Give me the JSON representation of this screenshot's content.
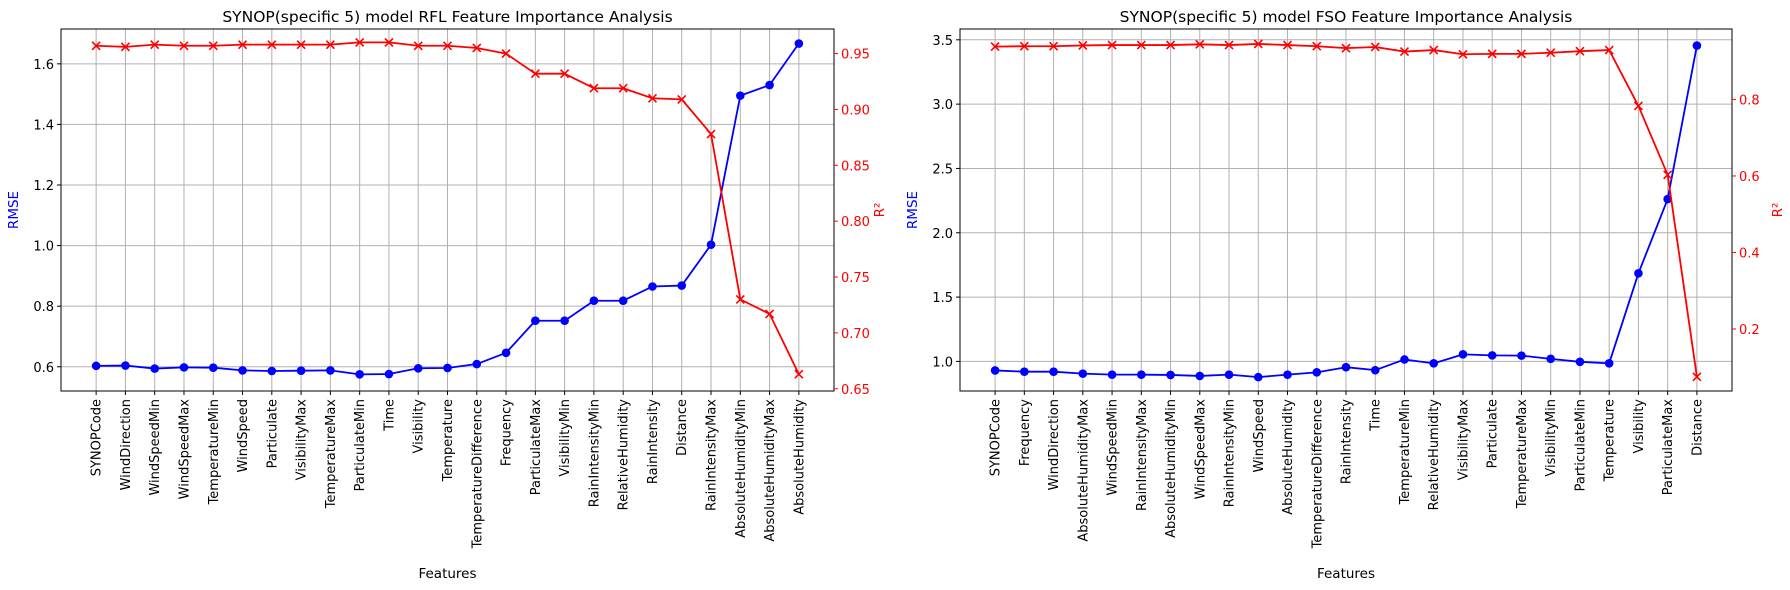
{
  "colors": {
    "rmse": "#0000ff",
    "r2": "#ff0000",
    "grid": "#b0b0b0",
    "axis": "#000000"
  },
  "chart_data": [
    {
      "type": "line",
      "title": "SYNOP(specific 5) model RFL Feature Importance Analysis",
      "xlabel": "Features",
      "ylabel": "RMSE",
      "y2label": "R²",
      "grid": true,
      "categories": [
        "SYNOPCode",
        "WindDirection",
        "WindSpeedMin",
        "WindSpeedMax",
        "TemperatureMin",
        "WindSpeed",
        "Particulate",
        "VisibilityMax",
        "TemperatureMax",
        "ParticulateMin",
        "Time",
        "Visibility",
        "Temperature",
        "TemperatureDifference",
        "Frequency",
        "ParticulateMax",
        "VisibilityMin",
        "RainIntensityMin",
        "RelativeHumidity",
        "RainIntensity",
        "Distance",
        "RainIntensityMax",
        "AbsoluteHumidityMin",
        "AbsoluteHumidityMax",
        "AbsoluteHumidity"
      ],
      "ylim": [
        0.52,
        1.715
      ],
      "y2lim": [
        0.648,
        0.972
      ],
      "yticks": [
        "0.6",
        "0.8",
        "1.0",
        "1.2",
        "1.4",
        "1.6"
      ],
      "y2ticks": [
        "0.65",
        "0.70",
        "0.75",
        "0.80",
        "0.85",
        "0.90",
        "0.95"
      ],
      "series": [
        {
          "name": "RMSE",
          "axis": "left",
          "marker": "circle",
          "color": "#0000ff",
          "values": [
            0.603,
            0.604,
            0.594,
            0.598,
            0.597,
            0.588,
            0.586,
            0.587,
            0.588,
            0.575,
            0.576,
            0.595,
            0.596,
            0.609,
            0.646,
            0.752,
            0.752,
            0.818,
            0.818,
            0.865,
            0.868,
            1.003,
            1.495,
            1.53,
            1.667
          ]
        },
        {
          "name": "R²",
          "axis": "right",
          "marker": "x",
          "color": "#ff0000",
          "values": [
            0.957,
            0.956,
            0.958,
            0.957,
            0.957,
            0.958,
            0.958,
            0.958,
            0.958,
            0.96,
            0.96,
            0.957,
            0.957,
            0.955,
            0.95,
            0.932,
            0.932,
            0.919,
            0.919,
            0.91,
            0.909,
            0.878,
            0.73,
            0.717,
            0.663
          ]
        }
      ]
    },
    {
      "type": "line",
      "title": "SYNOP(specific 5) model FSO Feature Importance Analysis",
      "xlabel": "Features",
      "ylabel": "RMSE",
      "y2label": "R²",
      "grid": true,
      "categories": [
        "SYNOPCode",
        "Frequency",
        "WindDirection",
        "AbsoluteHumidityMax",
        "WindSpeedMin",
        "RainIntensityMax",
        "AbsoluteHumidityMin",
        "WindSpeedMax",
        "RainIntensityMin",
        "WindSpeed",
        "AbsoluteHumidity",
        "TemperatureDifference",
        "RainIntensity",
        "Time",
        "TemperatureMin",
        "RelativeHumidity",
        "VisibilityMax",
        "Particulate",
        "TemperatureMax",
        "VisibilityMin",
        "ParticulateMin",
        "Temperature",
        "Visibility",
        "ParticulateMax",
        "Distance"
      ],
      "ylim": [
        0.77,
        3.584
      ],
      "y2lim": [
        0.038,
        0.984
      ],
      "yticks": [
        "1.0",
        "1.5",
        "2.0",
        "2.5",
        "3.0",
        "3.5"
      ],
      "y2ticks": [
        "0.2",
        "0.4",
        "0.6",
        "0.8"
      ],
      "series": [
        {
          "name": "RMSE",
          "axis": "left",
          "marker": "circle",
          "color": "#0000ff",
          "values": [
            0.93,
            0.92,
            0.92,
            0.905,
            0.897,
            0.897,
            0.895,
            0.887,
            0.897,
            0.878,
            0.897,
            0.915,
            0.955,
            0.932,
            1.015,
            0.985,
            1.055,
            1.047,
            1.045,
            1.02,
            0.997,
            0.985,
            1.685,
            2.262,
            3.455
          ]
        },
        {
          "name": "R²",
          "axis": "right",
          "marker": "x",
          "color": "#ff0000",
          "values": [
            0.938,
            0.939,
            0.939,
            0.941,
            0.942,
            0.942,
            0.942,
            0.944,
            0.942,
            0.945,
            0.942,
            0.939,
            0.934,
            0.937,
            0.925,
            0.929,
            0.918,
            0.919,
            0.919,
            0.922,
            0.926,
            0.929,
            0.783,
            0.603,
            0.075
          ]
        }
      ]
    }
  ]
}
